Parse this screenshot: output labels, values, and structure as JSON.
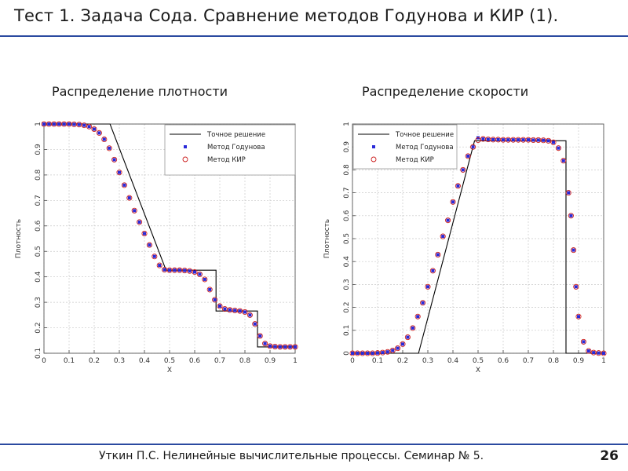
{
  "slide": {
    "title": "Тест 1. Задача Сода. Сравнение методов Годунова и КИР (1).",
    "footer": "Уткин П.С. Нелинейные вычислительные процессы. Семинар № 5.",
    "page_number": "26",
    "accent_color": "#2b4aa0"
  },
  "chart_data": [
    {
      "type": "line",
      "title": "Распределение плотности",
      "xlabel": "X",
      "ylabel": "Плотность",
      "xlim": [
        0,
        1
      ],
      "ylim": [
        0.1,
        1
      ],
      "x_ticks": [
        "0",
        "0.1",
        "0.2",
        "0.3",
        "0.4",
        "0.5",
        "0.6",
        "0.7",
        "0.8",
        "0.9",
        "1"
      ],
      "y_ticks": [
        "0.1",
        "0.2",
        "0.3",
        "0.4",
        "0.5",
        "0.6",
        "0.7",
        "0.8",
        "0.9",
        "1"
      ],
      "grid": true,
      "legend_position": "top-right",
      "series": [
        {
          "name": "Точное решение",
          "style": "line",
          "color": "#000000",
          "x": [
            0,
            0.263,
            0.486,
            0.685,
            0.685,
            0.85,
            0.85,
            1
          ],
          "y": [
            1,
            1,
            0.426,
            0.426,
            0.266,
            0.266,
            0.125,
            0.125
          ]
        },
        {
          "name": "Метод Годунова",
          "style": "square-markers",
          "color": "#2a2ad8",
          "x": [
            0,
            0.02,
            0.04,
            0.06,
            0.08,
            0.1,
            0.12,
            0.14,
            0.16,
            0.18,
            0.2,
            0.22,
            0.24,
            0.26,
            0.28,
            0.3,
            0.32,
            0.34,
            0.36,
            0.38,
            0.4,
            0.42,
            0.44,
            0.46,
            0.48,
            0.5,
            0.52,
            0.54,
            0.56,
            0.58,
            0.6,
            0.62,
            0.64,
            0.66,
            0.68,
            0.7,
            0.72,
            0.74,
            0.76,
            0.78,
            0.8,
            0.82,
            0.84,
            0.86,
            0.88,
            0.9,
            0.92,
            0.94,
            0.96,
            0.98,
            1.0
          ],
          "y": [
            1.0,
            1.0,
            1.0,
            1.0,
            1.0,
            1.0,
            0.999,
            0.998,
            0.995,
            0.99,
            0.98,
            0.965,
            0.94,
            0.905,
            0.86,
            0.81,
            0.76,
            0.71,
            0.66,
            0.615,
            0.57,
            0.525,
            0.48,
            0.445,
            0.428,
            0.426,
            0.426,
            0.426,
            0.425,
            0.423,
            0.419,
            0.41,
            0.39,
            0.35,
            0.31,
            0.285,
            0.274,
            0.27,
            0.268,
            0.266,
            0.262,
            0.25,
            0.215,
            0.168,
            0.138,
            0.128,
            0.126,
            0.125,
            0.125,
            0.125,
            0.125
          ]
        },
        {
          "name": "Метод КИР",
          "style": "circle-markers",
          "color": "#cc2020",
          "x": [
            0,
            0.02,
            0.04,
            0.06,
            0.08,
            0.1,
            0.12,
            0.14,
            0.16,
            0.18,
            0.2,
            0.22,
            0.24,
            0.26,
            0.28,
            0.3,
            0.32,
            0.34,
            0.36,
            0.38,
            0.4,
            0.42,
            0.44,
            0.46,
            0.48,
            0.5,
            0.52,
            0.54,
            0.56,
            0.58,
            0.6,
            0.62,
            0.64,
            0.66,
            0.68,
            0.7,
            0.72,
            0.74,
            0.76,
            0.78,
            0.8,
            0.82,
            0.84,
            0.86,
            0.88,
            0.9,
            0.92,
            0.94,
            0.96,
            0.98,
            1.0
          ],
          "y": [
            1.0,
            1.0,
            1.0,
            1.0,
            1.0,
            1.0,
            0.999,
            0.998,
            0.995,
            0.99,
            0.98,
            0.965,
            0.94,
            0.905,
            0.86,
            0.81,
            0.76,
            0.71,
            0.66,
            0.615,
            0.57,
            0.525,
            0.48,
            0.445,
            0.428,
            0.426,
            0.426,
            0.426,
            0.425,
            0.423,
            0.419,
            0.41,
            0.39,
            0.35,
            0.31,
            0.285,
            0.274,
            0.27,
            0.268,
            0.266,
            0.262,
            0.25,
            0.215,
            0.168,
            0.138,
            0.128,
            0.126,
            0.125,
            0.125,
            0.125,
            0.125
          ]
        }
      ]
    },
    {
      "type": "line",
      "title": "Распределение скорости",
      "xlabel": "X",
      "ylabel": "Плотность",
      "xlim": [
        0,
        1
      ],
      "ylim": [
        0,
        1
      ],
      "x_ticks": [
        "0",
        "0.1",
        "0.2",
        "0.3",
        "0.4",
        "0.5",
        "0.6",
        "0.7",
        "0.8",
        "0.9",
        "1"
      ],
      "y_ticks": [
        "0",
        "0.1",
        "0.2",
        "0.3",
        "0.4",
        "0.5",
        "0.6",
        "0.7",
        "0.8",
        "0.9",
        "1"
      ],
      "grid": true,
      "legend_position": "top-left",
      "series": [
        {
          "name": "Точное решение",
          "style": "line",
          "color": "#000000",
          "x": [
            0,
            0.263,
            0.486,
            0.85,
            0.85,
            1
          ],
          "y": [
            0,
            0,
            0.927,
            0.927,
            0,
            0
          ]
        },
        {
          "name": "Метод Годунова",
          "style": "square-markers",
          "color": "#2a2ad8",
          "x": [
            0,
            0.02,
            0.04,
            0.06,
            0.08,
            0.1,
            0.12,
            0.14,
            0.16,
            0.18,
            0.2,
            0.22,
            0.24,
            0.26,
            0.28,
            0.3,
            0.32,
            0.34,
            0.36,
            0.38,
            0.4,
            0.42,
            0.44,
            0.46,
            0.48,
            0.5,
            0.52,
            0.54,
            0.56,
            0.58,
            0.6,
            0.62,
            0.64,
            0.66,
            0.68,
            0.7,
            0.72,
            0.74,
            0.76,
            0.78,
            0.8,
            0.82,
            0.84,
            0.86,
            0.87,
            0.88,
            0.89,
            0.9,
            0.92,
            0.94,
            0.96,
            0.98,
            1.0
          ],
          "y": [
            0,
            0,
            0,
            0,
            0,
            0.001,
            0.003,
            0.006,
            0.012,
            0.022,
            0.04,
            0.07,
            0.11,
            0.16,
            0.22,
            0.29,
            0.36,
            0.43,
            0.51,
            0.58,
            0.66,
            0.73,
            0.8,
            0.86,
            0.9,
            0.94,
            0.935,
            0.933,
            0.932,
            0.932,
            0.931,
            0.931,
            0.931,
            0.931,
            0.931,
            0.931,
            0.93,
            0.93,
            0.929,
            0.927,
            0.92,
            0.895,
            0.84,
            0.7,
            0.6,
            0.45,
            0.29,
            0.16,
            0.05,
            0.01,
            0.003,
            0.001,
            0
          ]
        },
        {
          "name": "Метод КИР",
          "style": "circle-markers",
          "color": "#cc2020",
          "x": [
            0,
            0.02,
            0.04,
            0.06,
            0.08,
            0.1,
            0.12,
            0.14,
            0.16,
            0.18,
            0.2,
            0.22,
            0.24,
            0.26,
            0.28,
            0.3,
            0.32,
            0.34,
            0.36,
            0.38,
            0.4,
            0.42,
            0.44,
            0.46,
            0.48,
            0.5,
            0.52,
            0.54,
            0.56,
            0.58,
            0.6,
            0.62,
            0.64,
            0.66,
            0.68,
            0.7,
            0.72,
            0.74,
            0.76,
            0.78,
            0.8,
            0.82,
            0.84,
            0.86,
            0.87,
            0.88,
            0.89,
            0.9,
            0.92,
            0.94,
            0.96,
            0.98,
            1.0
          ],
          "y": [
            0,
            0,
            0,
            0,
            0,
            0.001,
            0.003,
            0.006,
            0.012,
            0.022,
            0.04,
            0.07,
            0.11,
            0.16,
            0.22,
            0.29,
            0.36,
            0.43,
            0.51,
            0.58,
            0.66,
            0.73,
            0.8,
            0.86,
            0.9,
            0.93,
            0.935,
            0.933,
            0.932,
            0.932,
            0.931,
            0.931,
            0.931,
            0.931,
            0.931,
            0.931,
            0.93,
            0.93,
            0.929,
            0.927,
            0.92,
            0.895,
            0.84,
            0.7,
            0.6,
            0.45,
            0.29,
            0.16,
            0.05,
            0.01,
            0.003,
            0.001,
            0
          ]
        }
      ]
    }
  ]
}
